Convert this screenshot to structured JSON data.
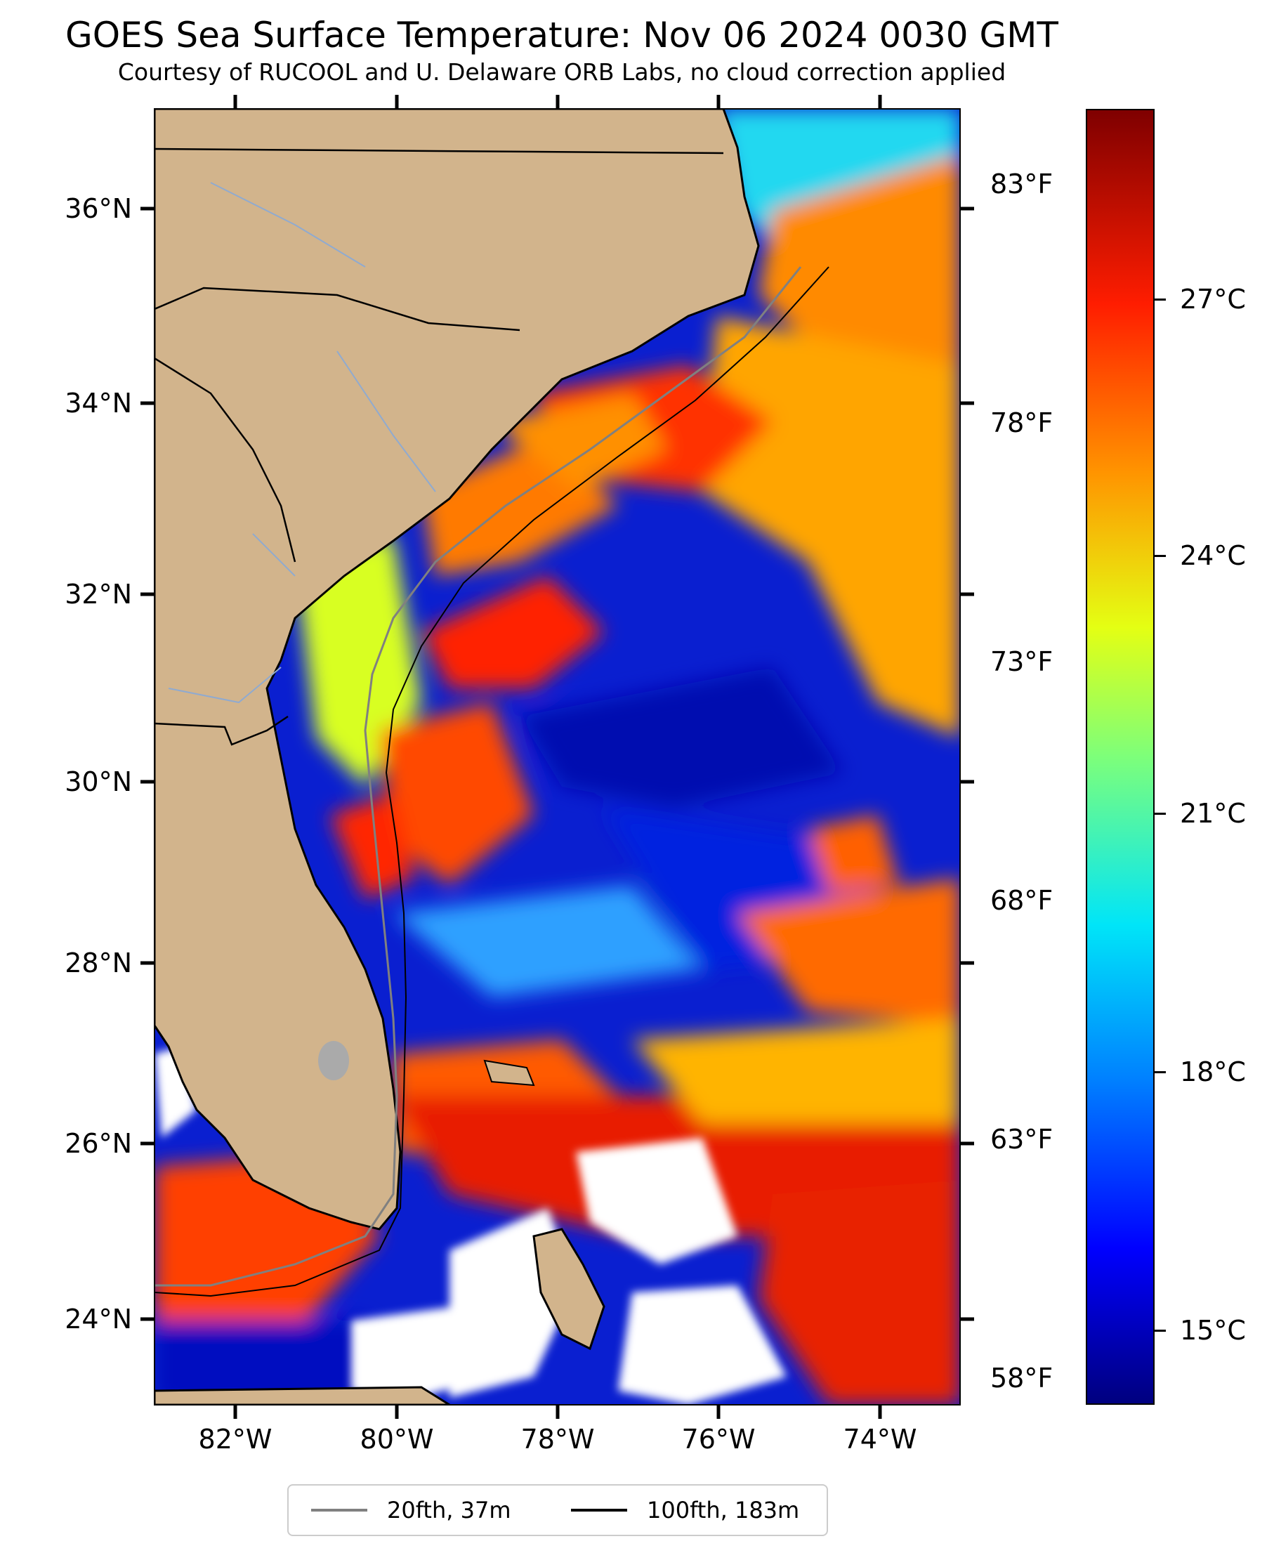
{
  "title": "GOES Sea Surface Temperature: Nov 06 2024 0030 GMT",
  "subtitle": "Courtesy of RUCOOL and U. Delaware ORB Labs, no cloud correction applied",
  "map": {
    "lon_range": [
      -83,
      -73
    ],
    "lat_range": [
      23.1,
      37
    ],
    "lat_labels": [
      "36°N",
      "34°N",
      "32°N",
      "30°N",
      "28°N",
      "26°N",
      "24°N"
    ],
    "lon_labels": [
      "82°W",
      "80°W",
      "78°W",
      "76°W",
      "74°W"
    ],
    "colors": {
      "land": "#d2b48c",
      "warm": "#ff2a00",
      "cool": "#0000c8",
      "cloud": "#ffffff"
    }
  },
  "colorbar": {
    "celsius_labels": [
      "27°C",
      "24°C",
      "21°C",
      "18°C",
      "15°C"
    ],
    "fahrenheit_labels": [
      "83°F",
      "78°F",
      "73°F",
      "68°F",
      "63°F",
      "58°F"
    ],
    "colormap": "jet"
  },
  "legend": {
    "items": [
      {
        "label": "20fth, 37m",
        "color": "#808080"
      },
      {
        "label": "100fth, 183m",
        "color": "#000000"
      }
    ]
  }
}
